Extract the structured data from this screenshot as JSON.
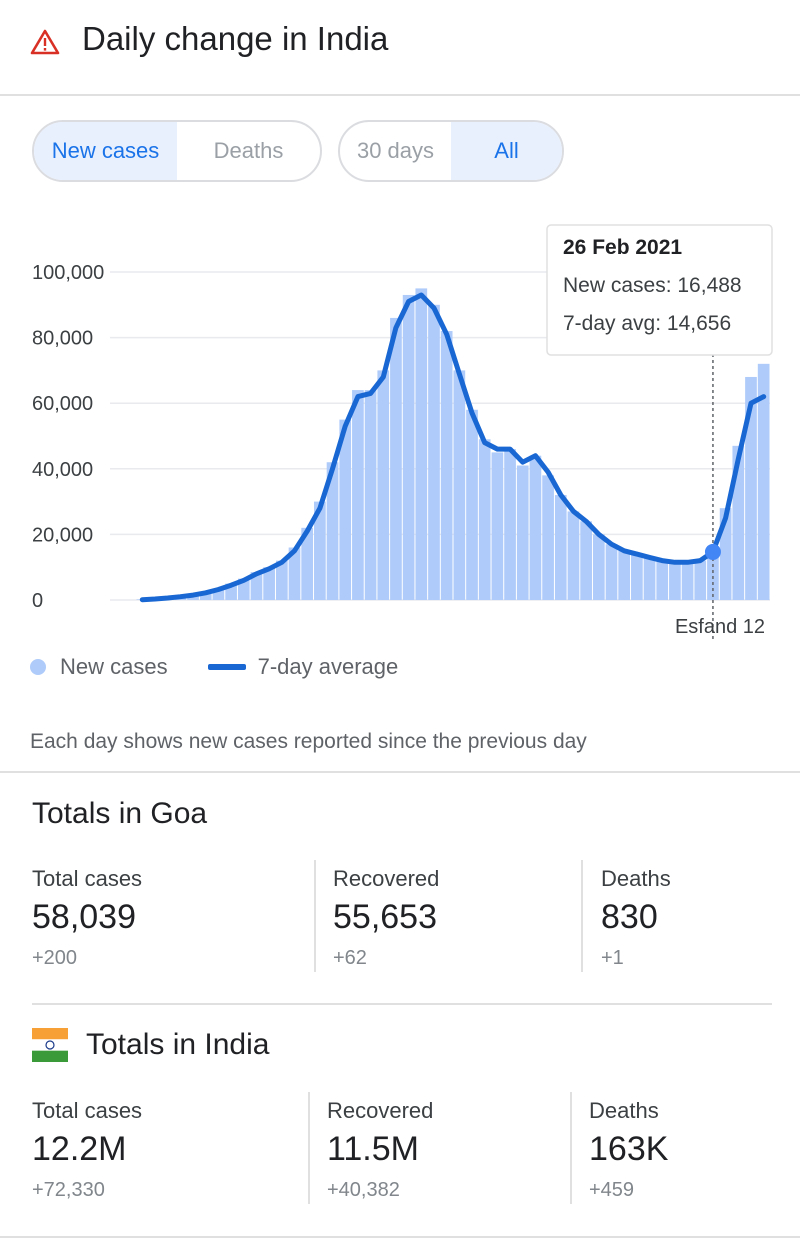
{
  "header": {
    "title": "Daily change in India",
    "icon": "warning-triangle-icon"
  },
  "metric_toggle": {
    "options": [
      "New cases",
      "Deaths"
    ],
    "selected": "New cases"
  },
  "range_toggle": {
    "options": [
      "30 days",
      "All"
    ],
    "selected": "All"
  },
  "tooltip": {
    "date": "26 Feb 2021",
    "new_cases": "New cases: 16,488",
    "avg": "7-day avg: 14,656"
  },
  "chart_data": {
    "type": "bar",
    "title": "Daily change in India",
    "ylim": [
      0,
      100000
    ],
    "y_ticks": [
      "100,000",
      "80,000",
      "60,000",
      "40,000",
      "20,000",
      "0"
    ],
    "x_tick_labels": [
      "Esfand 12"
    ],
    "highlighted_point": {
      "date": "26 Feb 2021",
      "new_cases": 16488,
      "avg_7day": 14656
    },
    "series": [
      {
        "name": "New cases",
        "values": [
          200,
          400,
          800,
          1200,
          1800,
          2500,
          3500,
          5000,
          6500,
          8500,
          10000,
          12000,
          16000,
          22000,
          30000,
          42000,
          55000,
          64000,
          64000,
          70000,
          86000,
          93000,
          95000,
          90000,
          82000,
          70000,
          58000,
          49000,
          45000,
          46000,
          41000,
          44000,
          38000,
          32000,
          27000,
          24000,
          20000,
          17000,
          15000,
          14000,
          13000,
          12500,
          12000,
          11500,
          12000,
          16500,
          28000,
          47000,
          68000,
          72000
        ]
      },
      {
        "name": "7-day average",
        "values": [
          100,
          300,
          600,
          1000,
          1500,
          2200,
          3200,
          4500,
          6000,
          8000,
          9500,
          11500,
          15000,
          21000,
          28000,
          40000,
          53000,
          62000,
          63000,
          68000,
          83000,
          91000,
          93000,
          89000,
          81000,
          69000,
          57000,
          48000,
          46000,
          46000,
          42000,
          44000,
          39000,
          32000,
          27000,
          24000,
          20000,
          17000,
          15000,
          14000,
          13000,
          12000,
          11500,
          11500,
          12000,
          14656,
          25000,
          43000,
          60000,
          62000
        ]
      }
    ]
  },
  "legend": {
    "new_cases": "New cases",
    "avg": "7-day average"
  },
  "note": "Each day shows new cases reported since the previous day",
  "goa": {
    "title": "Totals in Goa",
    "stats": [
      {
        "label": "Total cases",
        "value": "58,039",
        "change": "+200"
      },
      {
        "label": "Recovered",
        "value": "55,653",
        "change": "+62"
      },
      {
        "label": "Deaths",
        "value": "830",
        "change": "+1"
      }
    ]
  },
  "india": {
    "title": "Totals in India",
    "stats": [
      {
        "label": "Total cases",
        "value": "12.2M",
        "change": "+72,330"
      },
      {
        "label": "Recovered",
        "value": "11.5M",
        "change": "+40,382"
      },
      {
        "label": "Deaths",
        "value": "163K",
        "change": "+459"
      }
    ]
  }
}
